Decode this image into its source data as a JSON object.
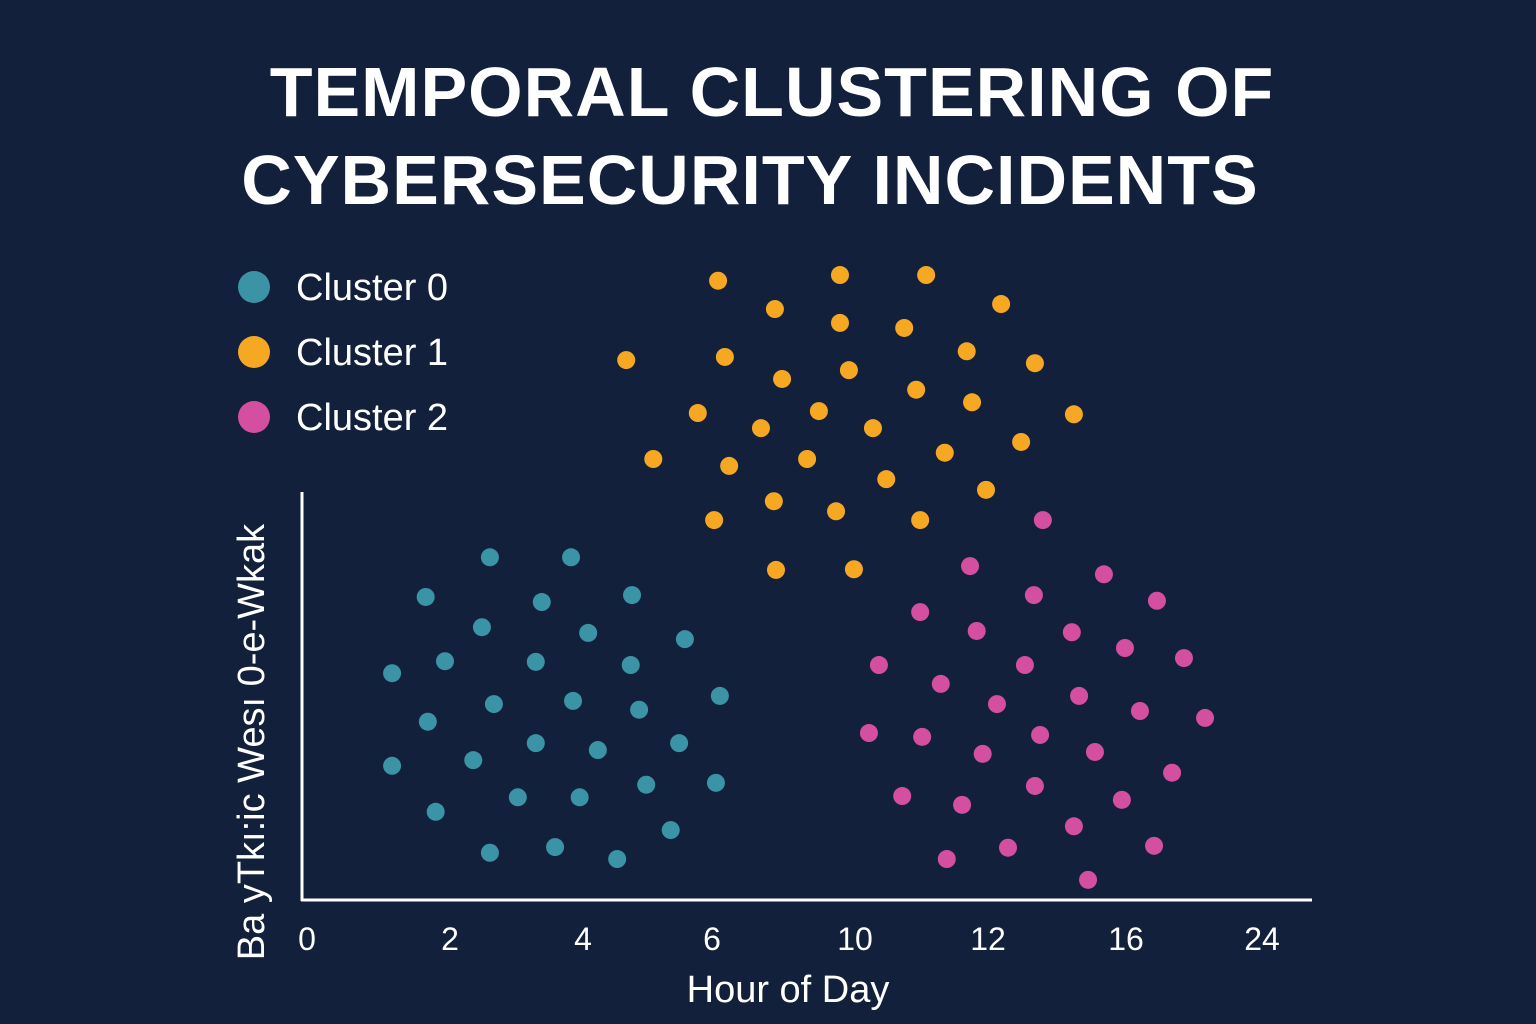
{
  "chart_data": {
    "type": "scatter",
    "title": [
      "TEMPORAL CLUSTERING OF",
      "CYBERSECURITY INCIDENTS"
    ],
    "xlabel": "Hour of Day",
    "ylabel": "Ba yTkı:ic Wesı 0-e-Wkak",
    "x_ticks": [
      0,
      2,
      4,
      6,
      10,
      12,
      16,
      24
    ],
    "y_range": [
      0,
      10
    ],
    "grid": false,
    "legend_position": "top-left",
    "colors": {
      "Cluster 0": "#3a94a6",
      "Cluster 1": "#f7a823",
      "Cluster 2": "#d44fa0"
    },
    "series": [
      {
        "name": "Cluster 0",
        "points": [
          [
            2.6,
            5.44
          ],
          [
            3.82,
            5.44
          ],
          [
            1.66,
            4.81
          ],
          [
            3.38,
            4.73
          ],
          [
            4.76,
            4.84
          ],
          [
            2.48,
            4.33
          ],
          [
            4.08,
            4.24
          ],
          [
            5.58,
            4.14
          ],
          [
            1.19,
            3.6
          ],
          [
            1.93,
            3.79
          ],
          [
            3.29,
            3.78
          ],
          [
            4.74,
            3.73
          ],
          [
            2.66,
            3.11
          ],
          [
            3.85,
            3.16
          ],
          [
            4.87,
            3.02
          ],
          [
            6.22,
            3.24
          ],
          [
            1.69,
            2.83
          ],
          [
            3.29,
            2.49
          ],
          [
            4.23,
            2.38
          ],
          [
            5.49,
            2.49
          ],
          [
            1.19,
            2.13
          ],
          [
            2.35,
            2.22
          ],
          [
            3.02,
            1.63
          ],
          [
            3.95,
            1.63
          ],
          [
            4.98,
            1.83
          ],
          [
            6.11,
            1.86
          ],
          [
            1.8,
            1.4
          ],
          [
            5.36,
            1.11
          ],
          [
            2.6,
            0.75
          ],
          [
            3.58,
            0.84
          ],
          [
            4.53,
            0.65
          ]
        ]
      },
      {
        "name": "Cluster 1",
        "points": [
          [
            6.17,
            9.83
          ],
          [
            9.58,
            9.92
          ],
          [
            11.07,
            9.92
          ],
          [
            7.76,
            9.38
          ],
          [
            12.38,
            9.46
          ],
          [
            9.58,
            9.16
          ],
          [
            10.74,
            9.08
          ],
          [
            4.67,
            8.57
          ],
          [
            6.36,
            8.62
          ],
          [
            11.68,
            8.71
          ],
          [
            13.36,
            8.52
          ],
          [
            7.96,
            8.27
          ],
          [
            9.83,
            8.41
          ],
          [
            10.92,
            8.1
          ],
          [
            5.78,
            7.73
          ],
          [
            8.99,
            7.76
          ],
          [
            11.76,
            7.9
          ],
          [
            14.49,
            7.71
          ],
          [
            7.37,
            7.49
          ],
          [
            10.27,
            7.49
          ],
          [
            12.96,
            7.27
          ],
          [
            5.09,
            7.0
          ],
          [
            6.48,
            6.89
          ],
          [
            8.66,
            7.0
          ],
          [
            11.35,
            7.1
          ],
          [
            10.47,
            6.68
          ],
          [
            11.97,
            6.51
          ],
          [
            6.06,
            6.03
          ],
          [
            7.73,
            6.33
          ],
          [
            9.47,
            6.17
          ],
          [
            10.98,
            6.03
          ],
          [
            7.79,
            5.24
          ],
          [
            9.97,
            5.25
          ]
        ]
      },
      {
        "name": "Cluster 2",
        "points": [
          [
            13.59,
            6.03
          ],
          [
            11.73,
            5.3
          ],
          [
            15.36,
            5.17
          ],
          [
            13.33,
            4.84
          ],
          [
            17.82,
            4.75
          ],
          [
            10.98,
            4.57
          ],
          [
            11.83,
            4.27
          ],
          [
            14.43,
            4.25
          ],
          [
            15.97,
            4.0
          ],
          [
            10.36,
            3.73
          ],
          [
            13.07,
            3.73
          ],
          [
            19.41,
            3.84
          ],
          [
            11.29,
            3.43
          ],
          [
            14.64,
            3.24
          ],
          [
            12.26,
            3.11
          ],
          [
            16.82,
            3.0
          ],
          [
            20.65,
            2.89
          ],
          [
            10.21,
            2.65
          ],
          [
            11.01,
            2.59
          ],
          [
            13.51,
            2.62
          ],
          [
            11.92,
            2.32
          ],
          [
            15.1,
            2.35
          ],
          [
            18.71,
            2.02
          ],
          [
            10.71,
            1.65
          ],
          [
            11.61,
            1.51
          ],
          [
            13.36,
            1.81
          ],
          [
            15.88,
            1.59
          ],
          [
            14.49,
            1.17
          ],
          [
            11.38,
            0.65
          ],
          [
            12.58,
            0.83
          ],
          [
            17.65,
            0.86
          ],
          [
            14.9,
            0.32
          ]
        ]
      }
    ]
  }
}
